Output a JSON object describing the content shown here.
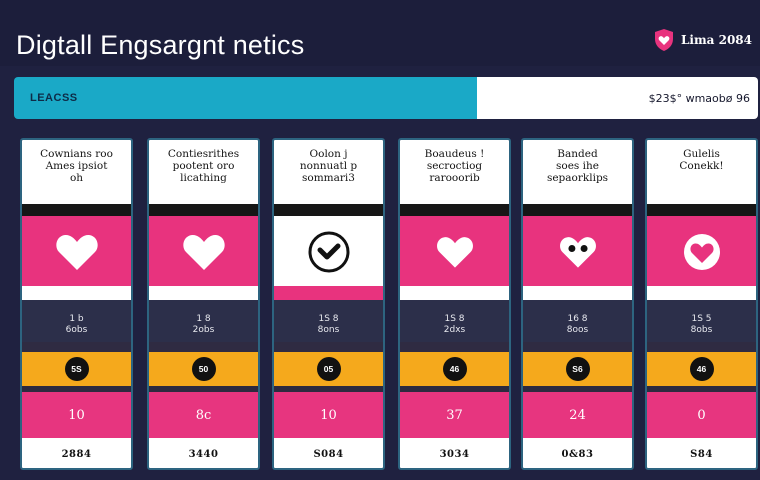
{
  "header": {
    "title": "Digtall Engsargnt netics",
    "brand_label": "Lima 2084",
    "brand_icon": "shield-heart-icon"
  },
  "toolbar": {
    "filter_label": "LEACSS",
    "stat_value": "$23$° wmaobø 96"
  },
  "colors": {
    "background": "#1f2140",
    "accent_teal": "#1aa9c7",
    "pink": "#e8337e",
    "orange": "#f5a91c"
  },
  "cards": [
    {
      "title": "Cownians roo\nAmes ipsiot\noh",
      "icon": "heart-icon",
      "metric": "1 b\n6obs",
      "badge": "5S",
      "value": "10",
      "footer": "2884"
    },
    {
      "title": "Contiesrithes\npootent oro\nlicathing",
      "icon": "heart-icon",
      "metric": "1 8\n2obs",
      "badge": "50",
      "value": "8c",
      "footer": "3440"
    },
    {
      "title": "Oolon j\nnonnuatl p\nsommari3",
      "icon": "check-circle-icon",
      "metric": "1S 8\n8ons",
      "badge": "05",
      "value": "10",
      "footer": "S084"
    },
    {
      "title": "Boaudeus !\nsecroctiog\nrarooorib",
      "icon": "heart-icon",
      "metric": "1S 8\n2dxs",
      "badge": "46",
      "value": "37",
      "footer": "3034"
    },
    {
      "title": "Banded\nsoes ihe\nsepaorklips",
      "icon": "heart-eyes-icon",
      "metric": "16 8\n8oos",
      "badge": "S6",
      "value": "24",
      "footer": "0&83"
    },
    {
      "title": "Gulelis\nConekk!",
      "icon": "heart-ring-icon",
      "metric": "1S 5\n8obs",
      "badge": "46",
      "value": "0",
      "footer": "S84"
    }
  ]
}
